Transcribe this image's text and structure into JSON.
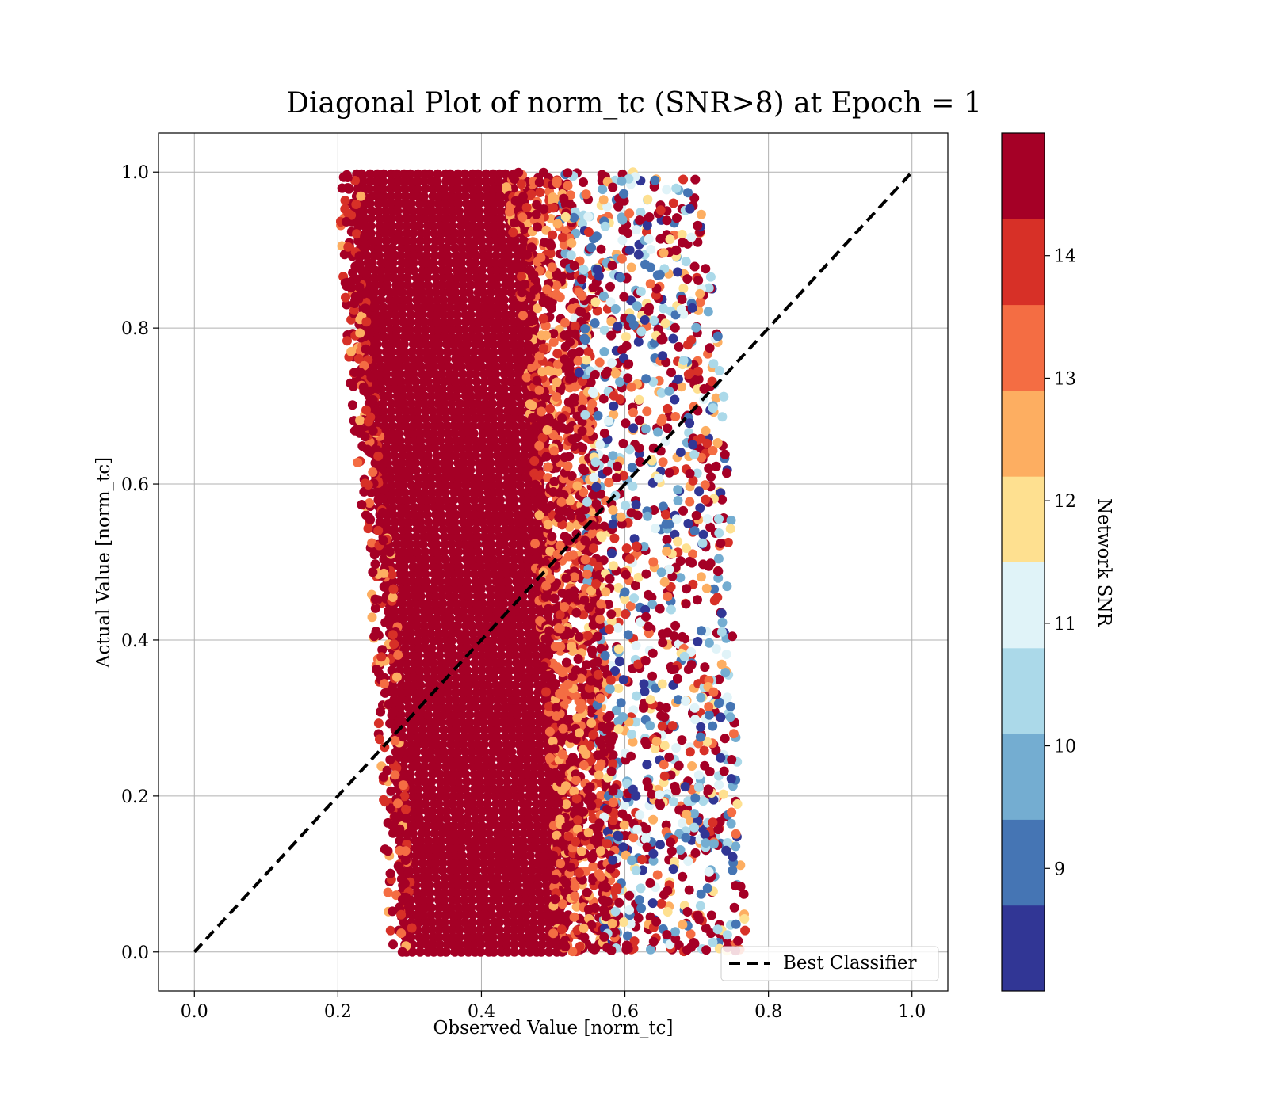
{
  "chart_data": {
    "type": "scatter",
    "title": "Diagonal Plot of norm_tc (SNR>8) at Epoch = 1",
    "xlabel": "Observed Value [norm_tc]",
    "ylabel": "Actual Value [norm_tc]",
    "xlim": [
      -0.05,
      1.05
    ],
    "ylim": [
      -0.05,
      1.05
    ],
    "x_ticks": [
      "0.0",
      "0.2",
      "0.4",
      "0.6",
      "0.8",
      "1.0"
    ],
    "y_ticks": [
      "0.0",
      "0.2",
      "0.4",
      "0.6",
      "0.8",
      "1.0"
    ],
    "grid": true,
    "reference_line": {
      "name": "Best Classifier",
      "x": [
        0.0,
        1.0
      ],
      "y": [
        0.0,
        1.0
      ],
      "style": "dashed",
      "color": "#000000"
    },
    "legend": {
      "placement": "lower right",
      "entries": [
        "Best Classifier"
      ]
    },
    "scatter_description_note": "",
    "point_cloud": {
      "y_range": [
        0.0,
        1.0
      ],
      "x_envelope": [
        {
          "y": 1.0,
          "xmin": 0.21,
          "core_max": 0.48,
          "xmax": 0.7
        },
        {
          "y": 0.8,
          "xmin": 0.22,
          "core_max": 0.51,
          "xmax": 0.73
        },
        {
          "y": 0.6,
          "xmin": 0.24,
          "core_max": 0.52,
          "xmax": 0.75
        },
        {
          "y": 0.4,
          "xmin": 0.26,
          "core_max": 0.53,
          "xmax": 0.75
        },
        {
          "y": 0.2,
          "xmin": 0.27,
          "core_max": 0.55,
          "xmax": 0.76
        },
        {
          "y": 0.0,
          "xmin": 0.28,
          "core_max": 0.55,
          "xmax": 0.77
        }
      ]
    },
    "colorbar": {
      "label": "Network SNR",
      "ticks": [
        "9",
        "10",
        "11",
        "12",
        "13",
        "14"
      ],
      "range": [
        8,
        15
      ],
      "bands": [
        {
          "from": 8.0,
          "to": 8.7,
          "color": "#313695"
        },
        {
          "from": 8.7,
          "to": 9.4,
          "color": "#4575b4"
        },
        {
          "from": 9.4,
          "to": 10.1,
          "color": "#74add1"
        },
        {
          "from": 10.1,
          "to": 10.8,
          "color": "#abd9e9"
        },
        {
          "from": 10.8,
          "to": 11.5,
          "color": "#e0f3f8"
        },
        {
          "from": 11.5,
          "to": 12.2,
          "color": "#fee090"
        },
        {
          "from": 12.2,
          "to": 12.9,
          "color": "#fdae61"
        },
        {
          "from": 12.9,
          "to": 13.6,
          "color": "#f46d43"
        },
        {
          "from": 13.6,
          "to": 14.3,
          "color": "#d73027"
        },
        {
          "from": 14.3,
          "to": 15.0,
          "color": "#a50026"
        }
      ]
    }
  }
}
